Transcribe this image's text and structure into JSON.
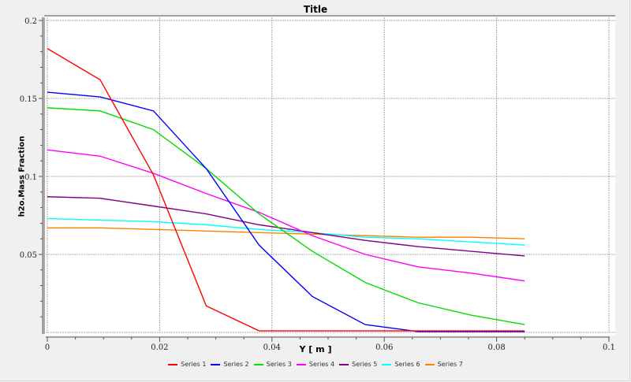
{
  "chart_data": {
    "type": "line",
    "title": "Title",
    "xlabel": "Y [ m ]",
    "ylabel": "h2o.Mass Fraction",
    "xlim": [
      0,
      0.1
    ],
    "ylim": [
      0,
      0.2
    ],
    "grid": true,
    "legend_position": "bottom",
    "x_ticks": [
      "0",
      "0.02",
      "0.04",
      "0.06",
      "0.08",
      "0.1"
    ],
    "y_ticks": [
      "0.05",
      "0.1",
      "0.15",
      "0.2"
    ],
    "x": [
      0,
      0.0094,
      0.0189,
      0.0283,
      0.0377,
      0.0472,
      0.0566,
      0.066,
      0.0755,
      0.085
    ],
    "series": [
      {
        "name": "Series 1",
        "color": "#ff0000",
        "values": [
          0.182,
          0.162,
          0.101,
          0.017,
          0.001,
          0.001,
          0.001,
          0.001,
          0.001,
          0.001
        ]
      },
      {
        "name": "Series 2",
        "color": "#0000ff",
        "values": [
          0.154,
          0.151,
          0.142,
          0.105,
          0.056,
          0.023,
          0.005,
          0.0005,
          0.0005,
          0.0005
        ]
      },
      {
        "name": "Series 3",
        "color": "#00dd00",
        "values": [
          0.144,
          0.142,
          0.13,
          0.105,
          0.076,
          0.052,
          0.032,
          0.019,
          0.011,
          0.005
        ]
      },
      {
        "name": "Series 4",
        "color": "#ff00ff",
        "values": [
          0.117,
          0.113,
          0.102,
          0.089,
          0.077,
          0.062,
          0.05,
          0.042,
          0.038,
          0.033
        ]
      },
      {
        "name": "Series 5",
        "color": "#800080",
        "values": [
          0.087,
          0.086,
          0.081,
          0.076,
          0.069,
          0.064,
          0.059,
          0.055,
          0.052,
          0.049
        ]
      },
      {
        "name": "Series 6",
        "color": "#00ffff",
        "values": [
          0.073,
          0.072,
          0.071,
          0.069,
          0.066,
          0.064,
          0.061,
          0.06,
          0.058,
          0.056
        ]
      },
      {
        "name": "Series 7",
        "color": "#ff8000",
        "values": [
          0.067,
          0.067,
          0.066,
          0.065,
          0.064,
          0.063,
          0.062,
          0.061,
          0.061,
          0.06
        ]
      }
    ]
  }
}
